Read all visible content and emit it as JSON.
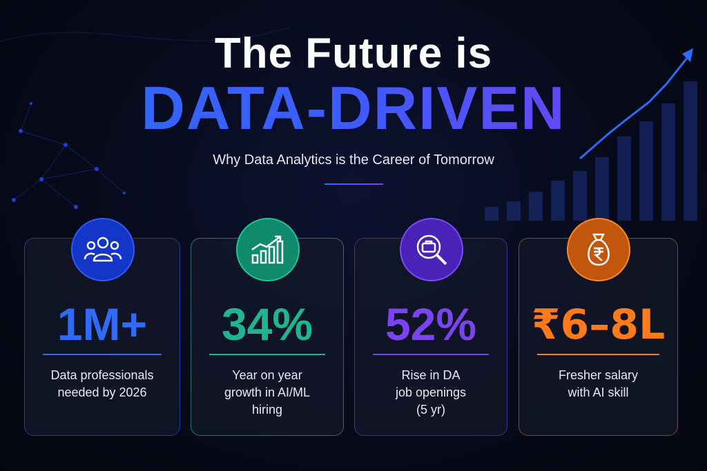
{
  "header": {
    "title_line1": "The Future is",
    "title_line2": "DATA-DRIVEN",
    "subtitle": "Why Data Analytics is the Career of Tomorrow"
  },
  "cards": [
    {
      "value": "1M+",
      "description": [
        "Data professionals",
        "needed by 2026"
      ]
    },
    {
      "value": "34%",
      "description": [
        "Year on year",
        "growth in AI/ML",
        "hiring"
      ]
    },
    {
      "value": "52%",
      "description": [
        "Rise in DA",
        "job openings",
        "(5 yr)"
      ]
    },
    {
      "value": "₹6–8L",
      "description": [
        "Fresher salary",
        "with AI skill"
      ]
    }
  ]
}
